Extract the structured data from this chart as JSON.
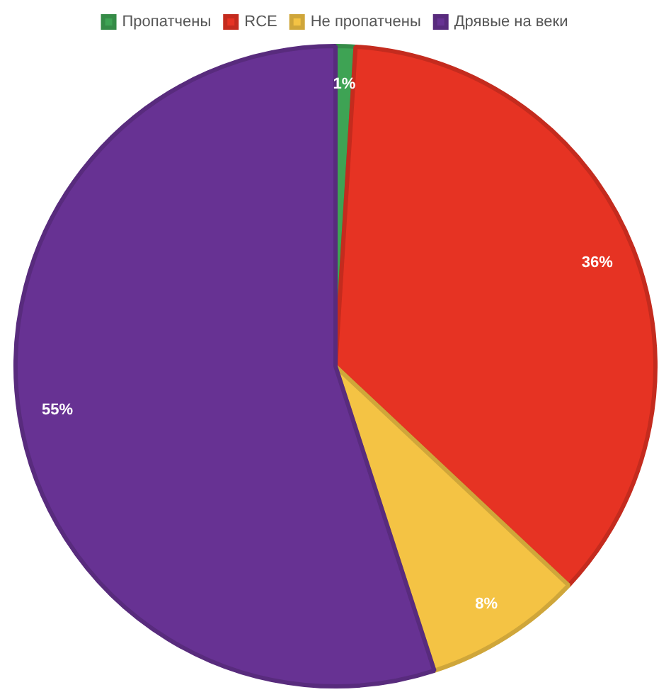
{
  "chart_data": {
    "type": "pie",
    "categories": [
      "Пропатчены",
      "RCE",
      "Не пропатчены",
      "Дрявые на веки"
    ],
    "values": [
      1,
      36,
      8,
      55
    ],
    "colors": [
      "#3ea354",
      "#e63323",
      "#f4c344",
      "#673293"
    ],
    "value_labels": [
      "1%",
      "36%",
      "8%",
      "55%"
    ],
    "legend": "top"
  }
}
